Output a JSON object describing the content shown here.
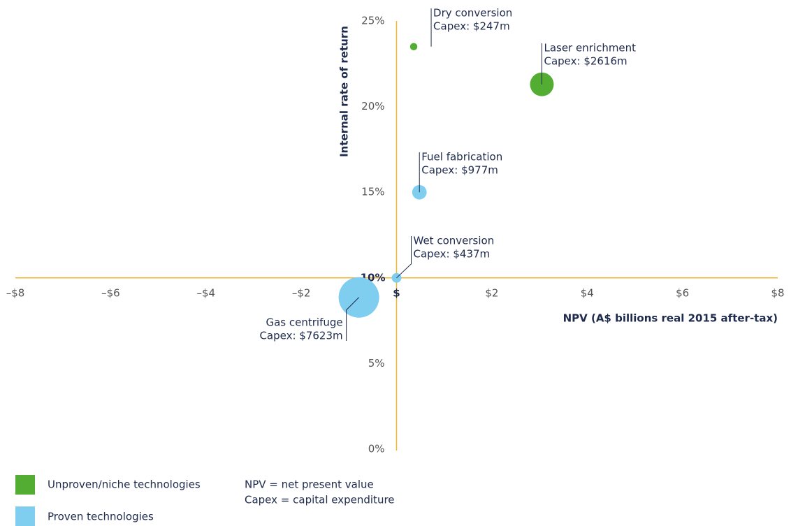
{
  "chart_data": {
    "type": "bubble",
    "xlabel": "NPV (A$ billions real 2015 after-tax)",
    "ylabel": "Internal rate of return",
    "xlim": [
      -8,
      8
    ],
    "ylim": [
      0,
      25
    ],
    "xticks": [
      {
        "value": -8,
        "label": "–$8"
      },
      {
        "value": -6,
        "label": "–$6"
      },
      {
        "value": -4,
        "label": "–$4"
      },
      {
        "value": -2,
        "label": "–$2"
      },
      {
        "value": 0,
        "label": "$"
      },
      {
        "value": 2,
        "label": "$2"
      },
      {
        "value": 4,
        "label": "$4"
      },
      {
        "value": 6,
        "label": "$6"
      },
      {
        "value": 8,
        "label": "$8"
      }
    ],
    "yticks": [
      {
        "value": 0,
        "label": "0%"
      },
      {
        "value": 5,
        "label": "5%"
      },
      {
        "value": 10,
        "label": "10%"
      },
      {
        "value": 15,
        "label": "15%"
      },
      {
        "value": 20,
        "label": "20%"
      },
      {
        "value": 25,
        "label": "25%"
      }
    ],
    "axes_cross": {
      "x": 0,
      "y": 10
    },
    "axis_color": "#f5b52e",
    "series": [
      {
        "name": "Unproven/niche technologies",
        "color": "#52ad32",
        "point_labels": [
          "Dry conversion",
          "Laser enrichment"
        ],
        "x": [
          0.36,
          3.05
        ],
        "values": [
          23.5,
          21.3
        ],
        "sizes": [
          247,
          2616
        ],
        "size_labels": [
          "Capex: $247m",
          "Capex: $2616m"
        ]
      },
      {
        "name": "Proven technologies",
        "color": "#7fcdef",
        "point_labels": [
          "Fuel fabrication",
          "Wet conversion",
          "Gas centrifuge"
        ],
        "x": [
          0.48,
          0.0,
          -0.79
        ],
        "values": [
          15.0,
          10.0,
          8.86
        ],
        "sizes": [
          977,
          437,
          7623
        ],
        "size_labels": [
          "Capex: $977m",
          "Capex: $437m",
          "Capex: $7623m"
        ]
      }
    ],
    "notes": [
      "NPV = net present value",
      "Capex = capital expenditure"
    ]
  }
}
